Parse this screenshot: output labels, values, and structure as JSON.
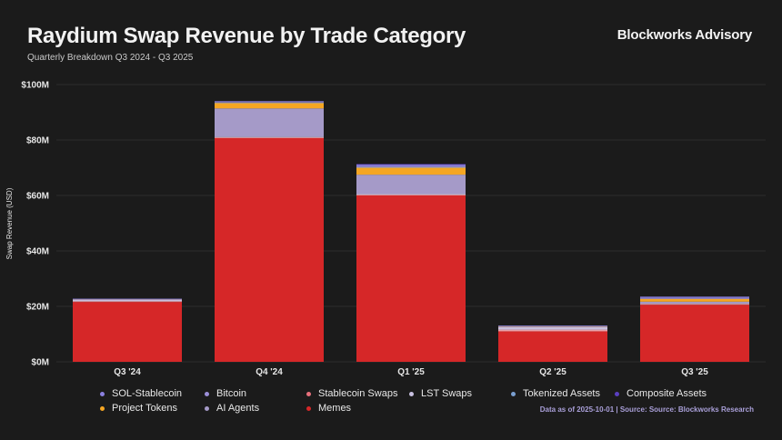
{
  "header": {
    "title": "Raydium Swap Revenue by Trade Category",
    "subtitle": "Quarterly Breakdown Q3 2024 - Q3 2025",
    "brand": "Blockworks Advisory"
  },
  "footnote": "Data as of 2025-10-01 | Source: Source: Blockworks Research",
  "chart_data": {
    "type": "bar",
    "stacked": true,
    "title": "Raydium Swap Revenue by Trade Category",
    "subtitle": "Quarterly Breakdown Q3 2024 - Q3 2025",
    "xlabel": "",
    "ylabel": "Swap Revenue (USD)",
    "ylim": [
      0,
      100
    ],
    "y_unit": "USD millions",
    "yticks": [
      0,
      20,
      40,
      60,
      80,
      100
    ],
    "ytick_labels": [
      "$0M",
      "$20M",
      "$40M",
      "$60M",
      "$80M",
      "$100M"
    ],
    "grid": true,
    "legend_position": "bottom",
    "categories": [
      "Q3 '24",
      "Q4 '24",
      "Q1 '25",
      "Q2 '25",
      "Q3 '25"
    ],
    "series": [
      {
        "name": "Memes",
        "color": "#d62728",
        "values": [
          21.6,
          80.7,
          60.0,
          11.0,
          20.6
        ]
      },
      {
        "name": "Stablecoin Swaps",
        "color": "#e8a0a8",
        "values": [
          0.3,
          0.3,
          0.3,
          0.6,
          0.3
        ]
      },
      {
        "name": "LST Swaps",
        "color": "#c8c0e0",
        "values": [
          0.5,
          0.2,
          0.3,
          0.9,
          0.2
        ]
      },
      {
        "name": "AI Agents",
        "color": "#a59ac8",
        "values": [
          0.1,
          10.2,
          6.9,
          0.2,
          0.6
        ]
      },
      {
        "name": "Project Tokens",
        "color": "#f5a623",
        "values": [
          0.1,
          2.0,
          2.6,
          0.1,
          1.0
        ]
      },
      {
        "name": "Tokenized Assets",
        "color": "#7a9fd0",
        "values": [
          0.0,
          0.1,
          0.1,
          0.0,
          0.0
        ]
      },
      {
        "name": "Bitcoin",
        "color": "#9b8fd8",
        "values": [
          0.05,
          0.2,
          0.4,
          0.1,
          0.3
        ]
      },
      {
        "name": "SOL-Stablecoin",
        "color": "#8b80e0",
        "values": [
          0.1,
          0.3,
          0.6,
          0.2,
          0.5
        ]
      },
      {
        "name": "Composite Assets",
        "color": "#5a3fc0",
        "values": [
          0.0,
          0.0,
          0.1,
          0.0,
          0.0
        ]
      }
    ],
    "legend": [
      {
        "name": "SOL-Stablecoin",
        "color": "#8b80e0"
      },
      {
        "name": "Bitcoin",
        "color": "#9b8fd8"
      },
      {
        "name": "Stablecoin Swaps",
        "color": "#e8707c"
      },
      {
        "name": "LST Swaps",
        "color": "#c8c0e0"
      },
      {
        "name": "Tokenized Assets",
        "color": "#7a9fd0"
      },
      {
        "name": "Composite Assets",
        "color": "#5a3fc0"
      },
      {
        "name": "Project Tokens",
        "color": "#f5a623"
      },
      {
        "name": "AI Agents",
        "color": "#a59ac8"
      },
      {
        "name": "Memes",
        "color": "#d62728"
      }
    ]
  }
}
